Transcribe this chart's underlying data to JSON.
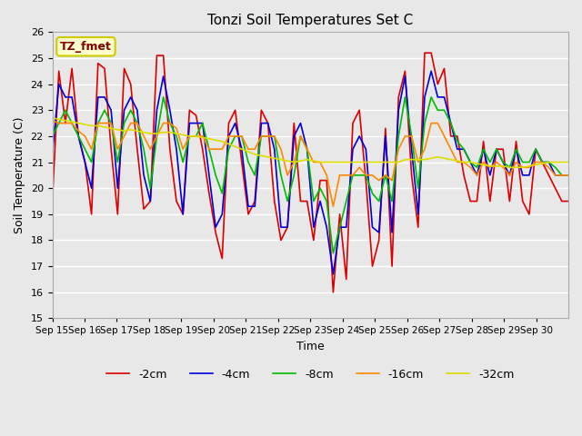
{
  "title": "Tonzi Soil Temperatures Set C",
  "xlabel": "Time",
  "ylabel": "Soil Temperature (C)",
  "ylim": [
    15.0,
    26.0
  ],
  "yticks": [
    15.0,
    16.0,
    17.0,
    18.0,
    19.0,
    20.0,
    21.0,
    22.0,
    23.0,
    24.0,
    25.0,
    26.0
  ],
  "xtick_labels": [
    "Sep 15",
    "Sep 16",
    "Sep 17",
    "Sep 18",
    "Sep 19",
    "Sep 20",
    "Sep 21",
    "Sep 22",
    "Sep 23",
    "Sep 24",
    "Sep 25",
    "Sep 26",
    "Sep 27",
    "Sep 28",
    "Sep 29",
    "Sep 30"
  ],
  "legend_label_box": "TZ_fmet",
  "legend_box_facecolor": "#ffffcc",
  "legend_box_text_color": "#800000",
  "legend_box_edgecolor": "#cccc00",
  "series_colors": [
    "#dd0000",
    "#0000dd",
    "#00bb00",
    "#ff8800",
    "#dddd00"
  ],
  "series_labels": [
    "-2cm",
    "-4cm",
    "-8cm",
    "-16cm",
    "-32cm"
  ],
  "background_color": "#e8e8e8",
  "grid_color": "#ffffff",
  "line_width": 1.2,
  "days": 16,
  "t_2cm": [
    19.5,
    24.5,
    22.5,
    24.6,
    22.0,
    21.0,
    19.0,
    24.8,
    24.6,
    21.5,
    19.0,
    24.6,
    24.0,
    21.5,
    19.2,
    19.5,
    25.1,
    25.1,
    21.5,
    19.5,
    19.0,
    23.0,
    22.8,
    21.5,
    19.8,
    18.3,
    17.3,
    22.5,
    23.0,
    21.0,
    19.0,
    19.5,
    23.0,
    22.5,
    19.5,
    18.0,
    18.5,
    22.5,
    19.5,
    19.5,
    18.0,
    20.3,
    20.3,
    16.0,
    19.0,
    16.5,
    22.5,
    23.0,
    20.3,
    17.0,
    18.0,
    22.3,
    17.0,
    23.5,
    24.5,
    20.5,
    18.5,
    25.2,
    25.2,
    24.0,
    24.6,
    22.0,
    22.0,
    20.5,
    19.5,
    19.5,
    21.8,
    19.5,
    21.5,
    21.5,
    19.5,
    21.8,
    19.5,
    19.0,
    21.5,
    21.0,
    20.5,
    20.0,
    19.5,
    19.5
  ],
  "t_4cm": [
    21.3,
    24.0,
    23.5,
    23.5,
    22.0,
    21.0,
    20.0,
    23.5,
    23.5,
    23.0,
    20.0,
    23.0,
    23.5,
    23.0,
    20.5,
    19.5,
    23.0,
    24.3,
    23.0,
    21.5,
    19.0,
    22.5,
    22.5,
    22.5,
    20.5,
    18.5,
    19.0,
    22.0,
    22.5,
    21.5,
    19.3,
    19.3,
    22.5,
    22.5,
    21.5,
    18.5,
    18.5,
    22.0,
    22.5,
    21.5,
    18.5,
    19.5,
    18.5,
    16.7,
    18.5,
    18.5,
    21.5,
    22.0,
    21.5,
    18.5,
    18.3,
    22.0,
    18.3,
    23.0,
    24.3,
    21.5,
    19.0,
    23.5,
    24.5,
    23.5,
    23.5,
    22.5,
    21.5,
    21.5,
    21.0,
    20.5,
    21.5,
    20.5,
    21.5,
    21.0,
    20.5,
    21.5,
    20.5,
    20.5,
    21.5,
    21.0,
    21.0,
    20.5,
    20.5,
    20.5
  ],
  "t_8cm": [
    22.0,
    22.5,
    23.0,
    22.5,
    22.0,
    21.5,
    21.0,
    22.5,
    23.0,
    22.5,
    21.0,
    22.5,
    23.0,
    22.5,
    21.5,
    20.0,
    22.0,
    23.5,
    22.5,
    22.0,
    21.0,
    22.0,
    22.0,
    22.5,
    21.5,
    20.5,
    19.8,
    21.5,
    22.0,
    22.0,
    21.0,
    20.5,
    22.0,
    22.0,
    22.0,
    20.5,
    19.5,
    20.5,
    22.0,
    21.5,
    19.5,
    20.0,
    19.5,
    17.5,
    18.5,
    19.5,
    20.5,
    20.5,
    20.5,
    19.8,
    19.5,
    20.5,
    19.5,
    22.0,
    23.5,
    22.0,
    20.0,
    22.5,
    23.5,
    23.0,
    23.0,
    22.5,
    21.8,
    21.5,
    21.0,
    20.8,
    21.5,
    21.0,
    21.5,
    21.0,
    20.8,
    21.5,
    21.0,
    21.0,
    21.5,
    21.0,
    21.0,
    20.8,
    20.5,
    20.5
  ],
  "t_16cm": [
    22.6,
    22.5,
    22.5,
    22.5,
    22.2,
    22.0,
    21.5,
    22.5,
    22.5,
    22.5,
    21.5,
    22.0,
    22.5,
    22.5,
    22.0,
    21.5,
    22.0,
    22.5,
    22.5,
    22.3,
    21.5,
    22.0,
    22.0,
    22.0,
    21.5,
    21.5,
    21.5,
    22.0,
    22.0,
    22.0,
    21.5,
    21.5,
    22.0,
    22.0,
    22.0,
    21.5,
    20.5,
    21.0,
    22.0,
    21.5,
    21.0,
    21.0,
    20.5,
    19.3,
    20.5,
    20.5,
    20.5,
    20.8,
    20.5,
    20.5,
    20.3,
    20.5,
    20.3,
    21.5,
    22.0,
    22.0,
    21.0,
    21.5,
    22.5,
    22.5,
    22.0,
    21.5,
    21.0,
    21.0,
    20.8,
    20.5,
    21.0,
    20.8,
    21.0,
    20.8,
    20.5,
    21.0,
    20.8,
    20.8,
    21.0,
    21.0,
    20.8,
    20.5,
    20.5,
    20.5
  ],
  "t_32cm": [
    22.7,
    22.65,
    22.6,
    22.55,
    22.5,
    22.45,
    22.4,
    22.4,
    22.35,
    22.3,
    22.25,
    22.2,
    22.25,
    22.2,
    22.15,
    22.1,
    22.1,
    22.15,
    22.15,
    22.1,
    22.05,
    22.0,
    22.0,
    21.95,
    21.9,
    21.85,
    21.8,
    21.7,
    21.6,
    21.5,
    21.4,
    21.3,
    21.25,
    21.2,
    21.15,
    21.1,
    21.05,
    21.0,
    21.05,
    21.1,
    21.05,
    21.0,
    21.0,
    21.0,
    21.0,
    21.0,
    21.0,
    21.0,
    21.0,
    21.0,
    21.0,
    21.0,
    21.0,
    21.0,
    21.1,
    21.1,
    21.1,
    21.1,
    21.15,
    21.2,
    21.15,
    21.1,
    21.05,
    21.0,
    21.0,
    20.95,
    20.9,
    20.85,
    20.85,
    20.85,
    20.8,
    20.8,
    20.8,
    20.85,
    20.9,
    20.95,
    21.0,
    21.0,
    21.0,
    21.0
  ]
}
